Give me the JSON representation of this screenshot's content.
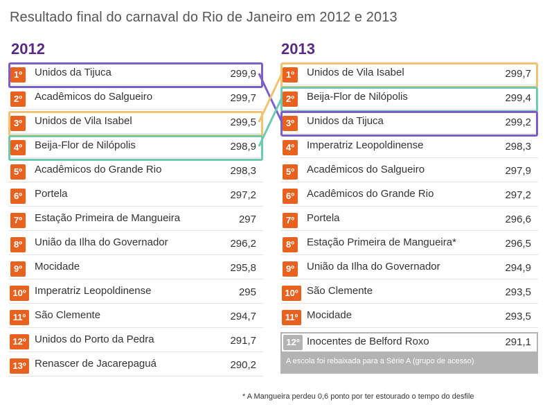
{
  "title": "Resultado final do carnaval do Rio de Janeiro em 2012 e 2013",
  "colors": {
    "badge": "#e8611e",
    "year": "#5a2a82",
    "tijuca": "#7b5fc7",
    "vila_isabel": "#f0c273",
    "beija_flor": "#6ec9b1",
    "relegation": "#b3b3b3"
  },
  "y2012": {
    "year": "2012",
    "rows": [
      {
        "pos": "1º",
        "school": "Unidos da Tijuca",
        "score": "299,9"
      },
      {
        "pos": "2º",
        "school": "Acadêmicos do Salgueiro",
        "score": "299,7"
      },
      {
        "pos": "3º",
        "school": "Unidos de Vila Isabel",
        "score": "299,5"
      },
      {
        "pos": "4º",
        "school": "Beija-Flor de Nilópolis",
        "score": "298,9"
      },
      {
        "pos": "5º",
        "school": "Acadêmicos do Grande Rio",
        "score": "298,3"
      },
      {
        "pos": "6º",
        "school": "Portela",
        "score": "297,2"
      },
      {
        "pos": "7º",
        "school": "Estação Primeira de Mangueira",
        "score": "297"
      },
      {
        "pos": "8º",
        "school": "União da Ilha do Governador",
        "score": "296,2"
      },
      {
        "pos": "9º",
        "school": "Mocidade",
        "score": "295,8"
      },
      {
        "pos": "10º",
        "school": "Imperatriz Leopoldinense",
        "score": "295"
      },
      {
        "pos": "11º",
        "school": "São Clemente",
        "score": "294,7"
      },
      {
        "pos": "12º",
        "school": "Unidos do Porto da Pedra",
        "score": "291,7"
      },
      {
        "pos": "13º",
        "school": "Renascer de Jacarepaguá",
        "score": "290,2"
      }
    ]
  },
  "y2013": {
    "year": "2013",
    "rows": [
      {
        "pos": "1º",
        "school": "Unidos de Vila Isabel",
        "score": "299,7"
      },
      {
        "pos": "2º",
        "school": "Beija-Flor de Nilópolis",
        "score": "299,4"
      },
      {
        "pos": "3º",
        "school": "Unidos da Tijuca",
        "score": "299,2"
      },
      {
        "pos": "4º",
        "school": "Imperatriz Leopoldinense",
        "score": "298,3"
      },
      {
        "pos": "5º",
        "school": "Acadêmicos do Salgueiro",
        "score": "297,9"
      },
      {
        "pos": "6º",
        "school": "Acadêmicos do Grande Rio",
        "score": "297,2"
      },
      {
        "pos": "7º",
        "school": "Portela",
        "score": "296,6"
      },
      {
        "pos": "8º",
        "school": "Estação Primeira de Mangueira*",
        "score": "296,5"
      },
      {
        "pos": "9º",
        "school": "União da Ilha do Governador",
        "score": "294,9"
      },
      {
        "pos": "10º",
        "school": "São Clemente",
        "score": "293,5"
      },
      {
        "pos": "11º",
        "school": "Mocidade",
        "score": "293,5"
      }
    ],
    "relegated": {
      "pos": "12º",
      "school": "Inocentes de Belford Roxo",
      "score": "291,1",
      "note": "A escola foi rebaixada para a Série A (grupo de acesso)"
    }
  },
  "footnote": "* A Mangueira perdeu 0,6 ponto por ter estourado o tempo do desfile"
}
